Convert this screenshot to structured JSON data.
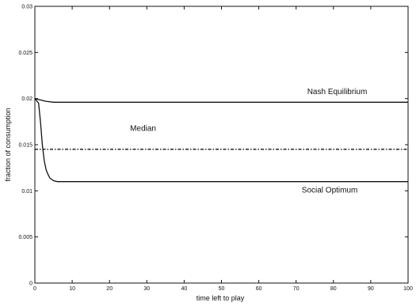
{
  "chart_data": {
    "type": "line",
    "title": "",
    "xlabel": "time left to play",
    "ylabel": "fraction of consumption",
    "xlim": [
      0,
      100
    ],
    "ylim": [
      0,
      0.03
    ],
    "grid": false,
    "x_ticks": [
      0,
      10,
      20,
      30,
      40,
      50,
      60,
      70,
      80,
      90,
      100
    ],
    "x_tick_labels": [
      "0",
      "10",
      "20",
      "30",
      "40",
      "50",
      "60",
      "70",
      "80",
      "90",
      "100"
    ],
    "y_ticks": [
      0,
      0.005,
      0.01,
      0.015,
      0.02,
      0.025,
      0.03
    ],
    "y_tick_labels": [
      "0",
      "0.005",
      "0.01",
      "0.015",
      "0.02",
      "0.025",
      "0.03"
    ],
    "series": [
      {
        "name": "Nash Equilibrium",
        "line_style": "solid",
        "color": "#111111",
        "x": [
          0,
          1,
          2,
          3,
          5,
          8,
          10,
          20,
          50,
          100
        ],
        "y": [
          0.02,
          0.0199,
          0.0198,
          0.0197,
          0.0196,
          0.0196,
          0.0196,
          0.0196,
          0.0196,
          0.0196
        ]
      },
      {
        "name": "Median",
        "line_style": "dash-dot",
        "color": "#111111",
        "x": [
          0,
          100
        ],
        "y": [
          0.0145,
          0.0145
        ]
      },
      {
        "name": "Social Optimum",
        "line_style": "solid",
        "color": "#111111",
        "x": [
          0,
          1,
          1.5,
          2,
          2.5,
          3,
          3.5,
          4,
          5,
          6,
          8,
          10,
          20,
          50,
          100
        ],
        "y": [
          0.02,
          0.0195,
          0.0175,
          0.015,
          0.0133,
          0.0123,
          0.0118,
          0.0114,
          0.0111,
          0.011,
          0.011,
          0.011,
          0.011,
          0.011,
          0.011
        ]
      }
    ],
    "annotations": [
      {
        "text": "Nash Equilibrium",
        "x": 81,
        "y": 0.0205
      },
      {
        "text": "Median",
        "x": 29,
        "y": 0.0165
      },
      {
        "text": "Social Optimum",
        "x": 79,
        "y": 0.0098
      }
    ]
  }
}
